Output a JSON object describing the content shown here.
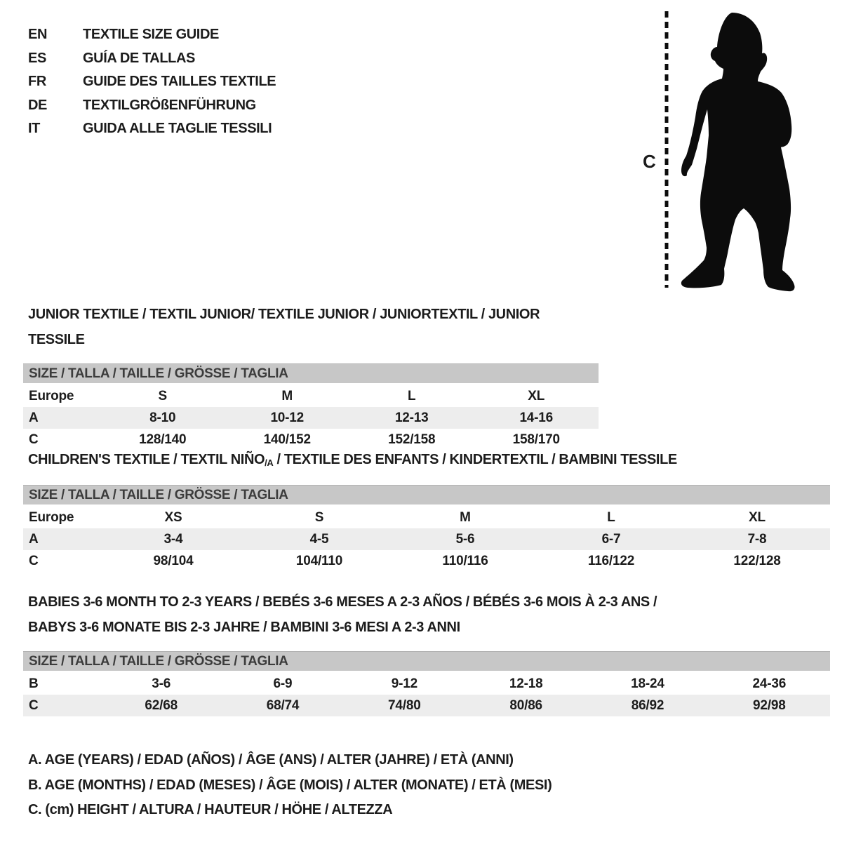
{
  "colors": {
    "text": "#1c1c1c",
    "muted_text": "#3c3c3c",
    "table_header_bg": "#c7c7c7",
    "row_stripe_bg": "#ededed",
    "silhouette": "#0c0c0c",
    "background": "#ffffff"
  },
  "languages": [
    {
      "code": "EN",
      "label": "TEXTILE SIZE GUIDE"
    },
    {
      "code": "ES",
      "label": "GUÍA DE TALLAS"
    },
    {
      "code": "FR",
      "label": "GUIDE DES TAILLES TEXTILE"
    },
    {
      "code": "DE",
      "label": "TEXTILGRÖßENFÜHRUNG"
    },
    {
      "code": "IT",
      "label": "GUIDA ALLE TAGLIE TESSILI"
    }
  ],
  "figure": {
    "height_marker_label": "C"
  },
  "sections": [
    {
      "title_lines": [
        [
          {
            "text": "JUNIOR TEXTILE / TEXTIL JUNIOR/ TEXTILE JUNIOR / JUNIORTEXTIL / JUNIOR TESSILE"
          }
        ]
      ],
      "table": {
        "header": "SIZE / TALLA / TAILLE / GRÖSSE / TAGLIA",
        "rows": [
          [
            "Europe",
            "S",
            "M",
            "L",
            "XL"
          ],
          [
            "A",
            "8-10",
            "10-12",
            "12-13",
            "14-16"
          ],
          [
            "C",
            "128/140",
            "140/152",
            "152/158",
            "158/170"
          ]
        ]
      }
    },
    {
      "title_lines": [
        [
          {
            "text": "CHILDREN'S TEXTILE / TEXTIL NIÑO"
          },
          {
            "text": "/A",
            "sub": true
          },
          {
            "text": " / TEXTILE DES ENFANTS / KINDERTEXTIL / BAMBINI TESSILE"
          }
        ]
      ],
      "table": {
        "header": "SIZE / TALLA / TAILLE / GRÖSSE / TAGLIA",
        "rows": [
          [
            "Europe",
            "XS",
            "S",
            "M",
            "L",
            "XL"
          ],
          [
            "A",
            "3-4",
            "4-5",
            "5-6",
            "6-7",
            "7-8"
          ],
          [
            "C",
            "98/104",
            "104/110",
            "110/116",
            "116/122",
            "122/128"
          ]
        ]
      }
    },
    {
      "title_lines": [
        [
          {
            "text": "BABIES 3-6 MONTH TO 2-3 YEARS / BEBÉS 3-6 MESES A 2-3 AÑOS / BÉBÉS 3-6 MOIS À 2-3 ANS /"
          }
        ],
        [
          {
            "text": "BABYS 3-6 MONATE BIS 2-3 JAHRE / BAMBINI 3-6 MESI A 2-3 ANNI"
          }
        ]
      ],
      "table": {
        "header": "SIZE / TALLA / TAILLE / GRÖSSE / TAGLIA",
        "rows": [
          [
            "B",
            "3-6",
            "6-9",
            "9-12",
            "12-18",
            "18-24",
            "24-36"
          ],
          [
            "C",
            "62/68",
            "68/74",
            "74/80",
            "80/86",
            "86/92",
            "92/98"
          ]
        ]
      }
    }
  ],
  "notes": [
    "A. AGE (YEARS) / EDAD (AÑOS) / ÂGE (ANS) / ALTER (JAHRE) / ETÀ (ANNI)",
    "B. AGE (MONTHS) / EDAD (MESES) / ÂGE (MOIS) / ALTER (MONATE) / ETÀ (MESI)",
    "C. (cm) HEIGHT / ALTURA / HAUTEUR / HÖHE / ALTEZZA"
  ]
}
